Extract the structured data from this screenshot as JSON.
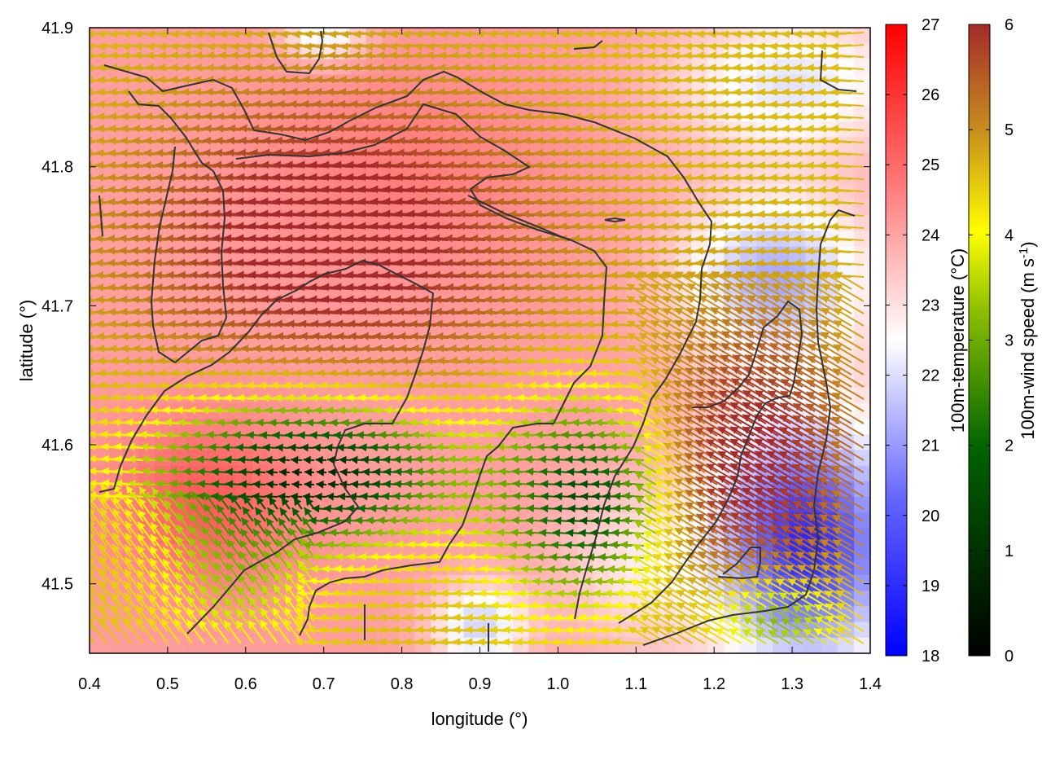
{
  "chart_data": {
    "type": "heatmap",
    "xlabel": "longitude (°)",
    "ylabel": "latitude (°)",
    "xlim": [
      0.4,
      1.4
    ],
    "ylim": [
      41.45,
      41.9
    ],
    "xticks": [
      "0.4",
      "0.5",
      "0.6",
      "0.7",
      "0.8",
      "0.9",
      "1.0",
      "1.1",
      "1.2",
      "1.3",
      "1.4"
    ],
    "yticks": [
      "41.5",
      "41.6",
      "41.7",
      "41.8",
      "41.9"
    ],
    "grid": false,
    "heatmap": {
      "variable": "100m-temperature (°C)",
      "range": [
        18,
        27
      ],
      "ticks": [
        "18",
        "19",
        "20",
        "21",
        "22",
        "23",
        "24",
        "25",
        "26",
        "27"
      ],
      "colors": [
        "#0000ff",
        "#ffffff",
        "#ff0000"
      ]
    },
    "vectors": {
      "variable": "100m-wind speed (m s-1)",
      "label_main": "100m-wind speed (m s",
      "label_sup": "-1",
      "label_close": ")",
      "range": [
        0,
        6
      ],
      "ticks": [
        "0",
        "1",
        "2",
        "3",
        "4",
        "5",
        "6"
      ],
      "colors": [
        "#000000",
        "#006400",
        "#7cb800",
        "#ffff00",
        "#c8901c",
        "#a52a2a"
      ]
    },
    "contour_color": "#333333"
  }
}
